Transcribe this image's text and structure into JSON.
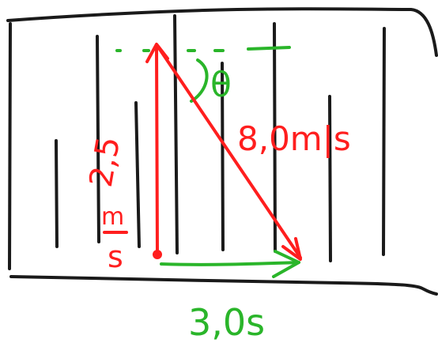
{
  "diagram": {
    "labels": {
      "velocity_up": "2,5",
      "velocity_up_unit_top": "m",
      "velocity_up_unit_bottom": "s",
      "resultant": "8,0m|s",
      "angle": "θ",
      "time": "3,0s"
    },
    "colors": {
      "ink": "#1a1a1a",
      "red": "#ff1e1e",
      "green": "#2ab52a",
      "background": "#ffffff"
    }
  }
}
